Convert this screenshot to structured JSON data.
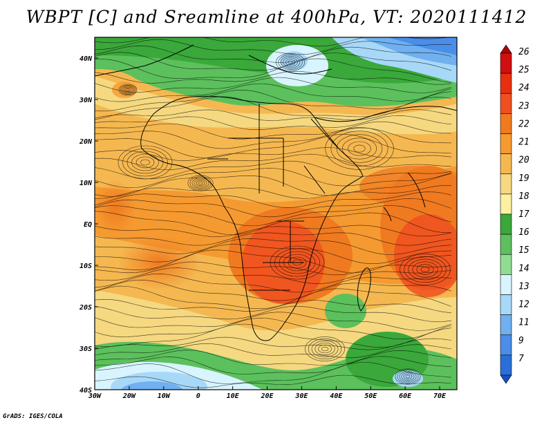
{
  "title": "WBPT [C] and Sreamline at 400hPa, VT: 2020111412",
  "credit": "GrADS: IGES/COLA",
  "map": {
    "lon_range": [
      -30,
      75
    ],
    "lat_range": [
      -40,
      45
    ],
    "x_ticks": [
      "30W",
      "20W",
      "10W",
      "0",
      "10E",
      "20E",
      "30E",
      "40E",
      "50E",
      "60E",
      "70E"
    ],
    "y_ticks": [
      "40N",
      "30N",
      "20N",
      "10N",
      "EQ",
      "10S",
      "20S",
      "30S",
      "40S"
    ],
    "field": "Wet-bulb potential temperature at 400hPa",
    "overlay": "Streamlines"
  },
  "colorbar": {
    "labels": [
      "26",
      "25",
      "24",
      "23",
      "22",
      "21",
      "20",
      "19",
      "18",
      "17",
      "16",
      "15",
      "14",
      "13",
      "12",
      "11",
      "9",
      "7"
    ],
    "colors": [
      "#b00000",
      "#d01010",
      "#e83010",
      "#f05020",
      "#f07a20",
      "#f59a30",
      "#f5b850",
      "#f5d880",
      "#fdf0a0",
      "#3aa83a",
      "#5cc05c",
      "#90dc90",
      "#d8f4ff",
      "#a8d8f8",
      "#70b0f0",
      "#4a8ee8",
      "#2a6ed8",
      "#1450c8"
    ]
  }
}
